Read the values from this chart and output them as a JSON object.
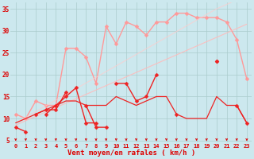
{
  "bg_color": "#cce8ee",
  "grid_color": "#aacccc",
  "xlabel": "Vent moyen/en rafales ( km/h )",
  "ylabel_ticks": [
    5,
    10,
    15,
    20,
    25,
    30,
    35
  ],
  "xlim": [
    -0.5,
    23.5
  ],
  "ylim": [
    4.5,
    36.5
  ],
  "tick_label_color": "#dd0000",
  "xlabel_color": "#dd0000",
  "series": [
    {
      "y": [
        11,
        10,
        14,
        13,
        13,
        26,
        26,
        24,
        18,
        31,
        27,
        32,
        31,
        29,
        32,
        32,
        34,
        34,
        33,
        33,
        33,
        32,
        28,
        19
      ],
      "color": "#ff9999",
      "marker": "D",
      "ms": 2.5,
      "lw": 1.0,
      "alpha": 1.0
    },
    {
      "y": [
        8.5,
        9.5,
        10.5,
        11.5,
        12.5,
        13.5,
        14.5,
        15.5,
        16.5,
        17.5,
        18.5,
        19.5,
        20.5,
        21.5,
        22.5,
        23.5,
        24.5,
        25.5,
        26.5,
        27.5,
        28.5,
        29.5,
        30.5,
        31.5
      ],
      "color": "#ffbbbb",
      "marker": null,
      "ms": 1,
      "lw": 0.8,
      "alpha": 0.9
    },
    {
      "y": [
        9,
        10.3,
        11.6,
        12.9,
        14.2,
        15.5,
        16.8,
        18.1,
        19.4,
        20.7,
        22.0,
        23.3,
        24.6,
        25.9,
        27.2,
        28.5,
        29.8,
        31.1,
        32.4,
        33.7,
        35.0,
        36.0,
        37.0,
        38.0
      ],
      "color": "#ffcccc",
      "marker": null,
      "ms": 1,
      "lw": 0.8,
      "alpha": 0.7
    },
    {
      "y": [
        null,
        null,
        null,
        null,
        null,
        null,
        null,
        null,
        null,
        null,
        null,
        null,
        null,
        null,
        null,
        null,
        null,
        null,
        null,
        null,
        null,
        null,
        null,
        null
      ],
      "color": "#ff9999",
      "marker": "D",
      "ms": 2,
      "lw": 0.8,
      "alpha": 0.8
    },
    {
      "y": [
        8,
        7,
        null,
        11,
        13,
        15,
        17,
        9,
        9,
        null,
        18,
        18,
        14,
        15,
        20,
        null,
        null,
        null,
        null,
        null,
        23,
        null,
        13,
        9
      ],
      "color": "#ee2222",
      "marker": "D",
      "ms": 2.5,
      "lw": 1.0,
      "alpha": 1.0
    },
    {
      "y": [
        9,
        10,
        11,
        12,
        13,
        14,
        14,
        13,
        13,
        13,
        15,
        14,
        13,
        14,
        15,
        15,
        11,
        10,
        10,
        10,
        15,
        13,
        13,
        9
      ],
      "color": "#ee2222",
      "marker": null,
      "ms": 1,
      "lw": 0.9,
      "alpha": 1.0
    },
    {
      "y": [
        null,
        null,
        11,
        12,
        12,
        16,
        null,
        13,
        8,
        8,
        null,
        null,
        null,
        null,
        null,
        null,
        null,
        null,
        null,
        null,
        null,
        null,
        null,
        null
      ],
      "color": "#ee2222",
      "marker": "D",
      "ms": 2.5,
      "lw": 1.0,
      "alpha": 1.0
    },
    {
      "y": [
        null,
        null,
        null,
        null,
        null,
        null,
        null,
        null,
        null,
        null,
        null,
        null,
        null,
        null,
        null,
        null,
        11,
        null,
        null,
        null,
        23,
        null,
        null,
        null
      ],
      "color": "#ee2222",
      "marker": "D",
      "ms": 2.5,
      "lw": 1.0,
      "alpha": 1.0
    },
    {
      "y": [
        null,
        null,
        null,
        null,
        null,
        null,
        null,
        null,
        null,
        null,
        null,
        null,
        null,
        null,
        null,
        null,
        null,
        null,
        null,
        null,
        null,
        null,
        null,
        null
      ],
      "color": "#ff7777",
      "marker": null,
      "ms": 1,
      "lw": 0.8,
      "alpha": 0.8
    }
  ]
}
